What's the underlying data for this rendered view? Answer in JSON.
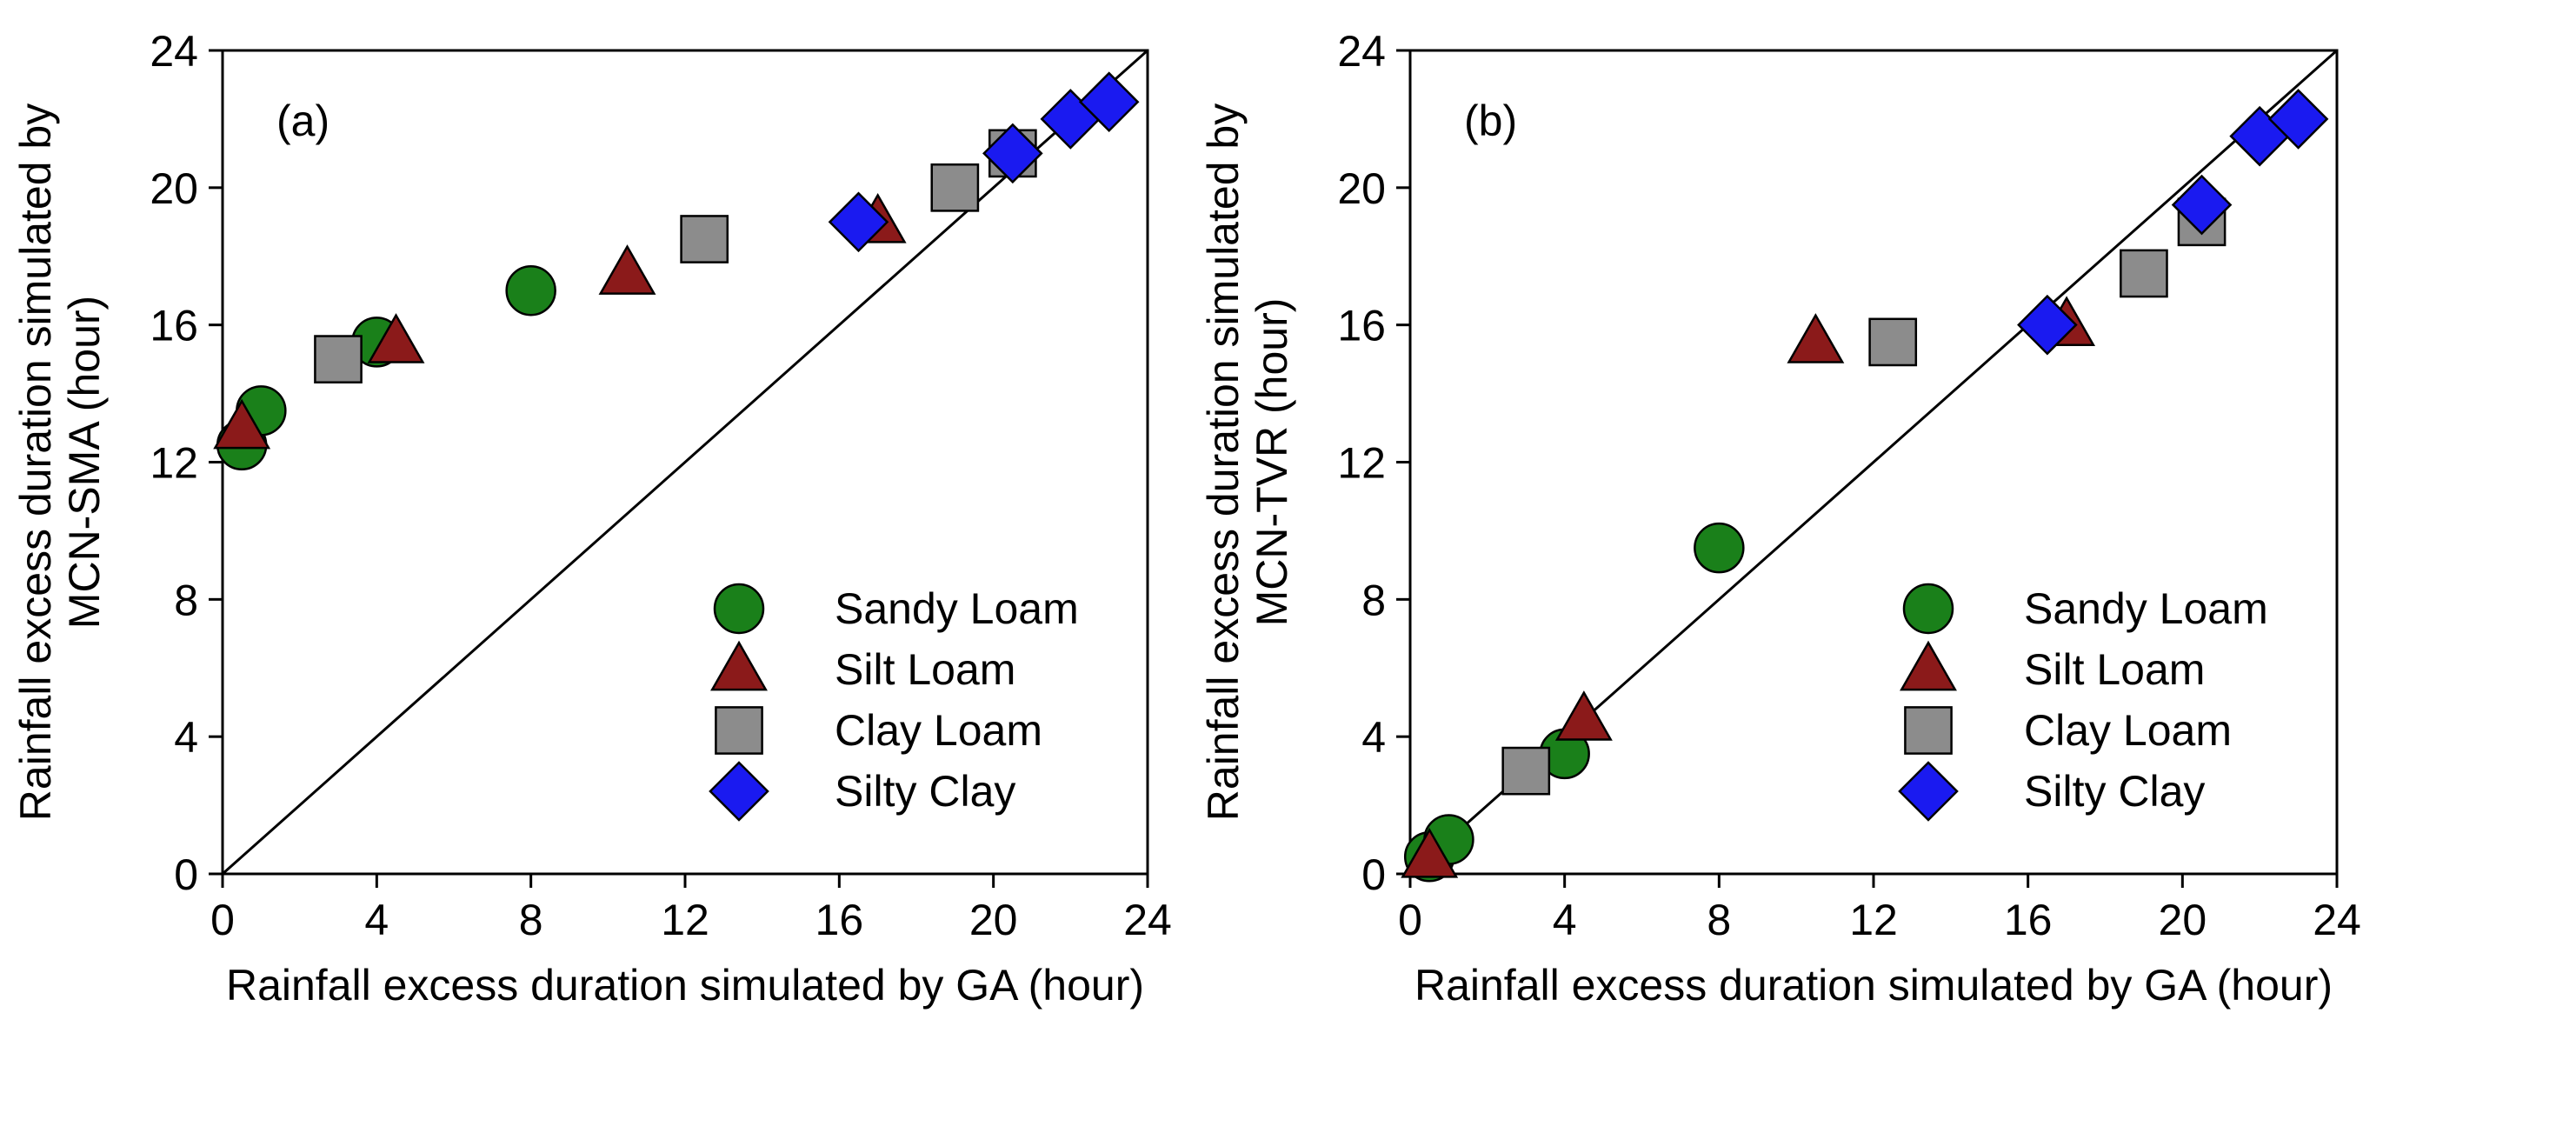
{
  "figure": {
    "series_styles": {
      "Sandy Loam": {
        "marker": "circle-icon",
        "color": "#1A801A"
      },
      "Silt Loam": {
        "marker": "triangle-icon",
        "color": "#8B1A1A"
      },
      "Clay Loam": {
        "marker": "square-icon",
        "color": "#8C8C8C"
      },
      "Silty Clay": {
        "marker": "diamond-icon",
        "color": "#1A1AF0"
      }
    }
  },
  "chart_data": [
    {
      "type": "scatter",
      "panel_label": "(a)",
      "title": "",
      "xlabel": "Rainfall excess duration simulated by GA (hour)",
      "ylabel": [
        "Rainfall excess duration simulated by",
        "MCN-SMA (hour)"
      ],
      "xlim": [
        0,
        24
      ],
      "ylim": [
        0,
        24
      ],
      "xticks": [
        0,
        4,
        8,
        12,
        16,
        20,
        24
      ],
      "yticks": [
        0,
        4,
        8,
        12,
        16,
        20,
        24
      ],
      "reference_line": "1:1",
      "legend_position": "bottom-right",
      "series": [
        {
          "name": "Sandy Loam",
          "points": [
            [
              0.5,
              12.5
            ],
            [
              1.0,
              13.5
            ],
            [
              4.0,
              15.5
            ],
            [
              8.0,
              17.0
            ]
          ]
        },
        {
          "name": "Silt Loam",
          "points": [
            [
              0.5,
              13.0
            ],
            [
              4.5,
              15.5
            ],
            [
              10.5,
              17.5
            ],
            [
              17.0,
              19.0
            ]
          ]
        },
        {
          "name": "Clay Loam",
          "points": [
            [
              3.0,
              15.0
            ],
            [
              12.5,
              18.5
            ],
            [
              19.0,
              20.0
            ],
            [
              20.5,
              21.0
            ]
          ]
        },
        {
          "name": "Silty Clay",
          "points": [
            [
              16.5,
              19.0
            ],
            [
              20.5,
              21.0
            ],
            [
              22.0,
              22.0
            ],
            [
              23.0,
              22.5
            ]
          ]
        }
      ]
    },
    {
      "type": "scatter",
      "panel_label": "(b)",
      "title": "",
      "xlabel": "Rainfall excess duration simulated by GA (hour)",
      "ylabel": [
        "Rainfall excess duration simulated by",
        "MCN-TVR (hour)"
      ],
      "xlim": [
        0,
        24
      ],
      "ylim": [
        0,
        24
      ],
      "xticks": [
        0,
        4,
        8,
        12,
        16,
        20,
        24
      ],
      "yticks": [
        0,
        4,
        8,
        12,
        16,
        20,
        24
      ],
      "reference_line": "1:1",
      "legend_position": "bottom-right",
      "series": [
        {
          "name": "Sandy Loam",
          "points": [
            [
              0.5,
              0.5
            ],
            [
              1.0,
              1.0
            ],
            [
              4.0,
              3.5
            ],
            [
              8.0,
              9.5
            ]
          ]
        },
        {
          "name": "Silt Loam",
          "points": [
            [
              0.5,
              0.5
            ],
            [
              4.5,
              4.5
            ],
            [
              10.5,
              15.5
            ],
            [
              17.0,
              16.0
            ]
          ]
        },
        {
          "name": "Clay Loam",
          "points": [
            [
              3.0,
              3.0
            ],
            [
              12.5,
              15.5
            ],
            [
              19.0,
              17.5
            ],
            [
              20.5,
              19.0
            ]
          ]
        },
        {
          "name": "Silty Clay",
          "points": [
            [
              16.5,
              16.0
            ],
            [
              20.5,
              19.5
            ],
            [
              22.0,
              21.5
            ],
            [
              23.0,
              22.0
            ]
          ]
        }
      ]
    }
  ]
}
